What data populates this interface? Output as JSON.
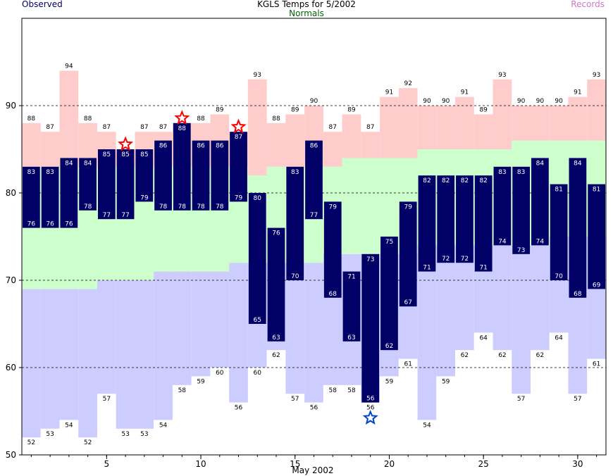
{
  "chart_data": {
    "type": "bar",
    "title": "KGLS Temps for 5/2002",
    "xlabel": "May 2002",
    "legend_labels": {
      "observed": "Observed",
      "normals": "Normals",
      "records": "Records"
    },
    "legend_placement": "top",
    "xlim": [
      0.5,
      31.5
    ],
    "ylim": [
      50,
      100
    ],
    "x_ticks": [
      5,
      10,
      15,
      20,
      25,
      30
    ],
    "y_ticks": [
      50,
      60,
      70,
      80,
      90
    ],
    "y_dashed_gridlines": [
      60,
      70,
      80,
      90
    ],
    "days": [
      1,
      2,
      3,
      4,
      5,
      6,
      7,
      8,
      9,
      10,
      11,
      12,
      13,
      14,
      15,
      16,
      17,
      18,
      19,
      20,
      21,
      22,
      23,
      24,
      25,
      26,
      27,
      28,
      29,
      30,
      31
    ],
    "series": [
      {
        "name": "Observed",
        "key": "obs_high",
        "values": [
          83,
          83,
          84,
          84,
          85,
          85,
          85,
          86,
          88,
          86,
          86,
          87,
          80,
          76,
          83,
          86,
          79,
          71,
          73,
          75,
          79,
          82,
          82,
          82,
          82,
          83,
          83,
          84,
          81,
          84,
          81
        ]
      },
      {
        "name": "Observed",
        "key": "obs_low",
        "values": [
          76,
          76,
          76,
          78,
          77,
          77,
          79,
          78,
          78,
          78,
          78,
          79,
          65,
          63,
          70,
          77,
          68,
          63,
          56,
          62,
          67,
          71,
          72,
          72,
          71,
          74,
          73,
          74,
          70,
          68,
          69
        ]
      },
      {
        "name": "Normals",
        "key": "normal_high",
        "values": [
          83,
          83,
          83,
          83,
          83,
          83,
          83,
          83,
          83,
          83,
          83,
          83,
          82,
          83,
          83,
          83,
          83,
          84,
          84,
          84,
          84,
          85,
          85,
          85,
          85,
          85,
          86,
          86,
          86,
          86,
          86
        ]
      },
      {
        "name": "Normals",
        "key": "normal_low",
        "values": [
          69,
          69,
          69,
          69,
          70,
          70,
          70,
          71,
          71,
          71,
          71,
          72,
          72,
          72,
          72,
          72,
          73,
          73,
          73,
          73,
          73,
          74,
          74,
          74,
          74,
          74,
          74,
          74,
          75,
          75,
          75
        ]
      },
      {
        "name": "Records",
        "key": "record_high",
        "values": [
          88,
          87,
          94,
          88,
          87,
          85,
          87,
          87,
          88,
          88,
          89,
          87,
          93,
          88,
          89,
          90,
          87,
          89,
          87,
          91,
          92,
          90,
          90,
          91,
          89,
          93,
          90,
          90,
          90,
          91,
          93
        ]
      },
      {
        "name": "Records",
        "key": "record_low",
        "values": [
          52,
          53,
          54,
          52,
          57,
          53,
          53,
          54,
          58,
          59,
          60,
          56,
          60,
          62,
          57,
          56,
          58,
          58,
          56,
          59,
          61,
          54,
          59,
          62,
          64,
          62,
          57,
          62,
          64,
          57,
          61
        ]
      }
    ],
    "record_high_stars_days": [
      6,
      9,
      12
    ],
    "record_low_stars_days": [
      19
    ],
    "colors": {
      "observed_bar": "#000066",
      "normals_band": "#ccffcc",
      "record_high_band": "#ffcccc",
      "record_low_band": "#ccccff",
      "high_star": "#ff0000",
      "low_star": "#0044cc",
      "observed_label": "#000066",
      "normals_label": "#006600",
      "records_label": "#cc77cc",
      "gridline": "#000000"
    },
    "grid": "dashed horizontal"
  }
}
